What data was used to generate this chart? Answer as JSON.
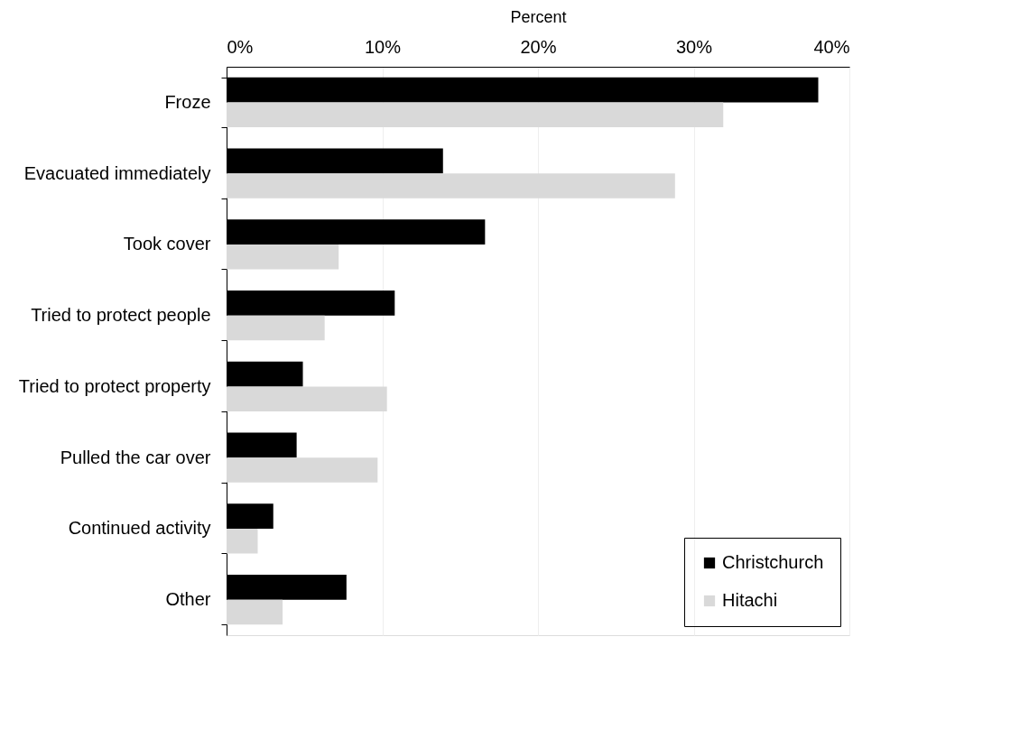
{
  "chart_data": {
    "type": "bar",
    "orientation": "horizontal",
    "xlabel": "Percent",
    "categories": [
      "Froze",
      "Evacuated immediately",
      "Took cover",
      "Tried to protect people",
      "Tried to protect property",
      "Pulled the car over",
      "Continued activity",
      "Other"
    ],
    "series": [
      {
        "name": "Christchurch",
        "color": "#000000",
        "values": [
          38.0,
          13.9,
          16.6,
          10.8,
          4.9,
          4.5,
          3.0,
          7.7
        ]
      },
      {
        "name": "Hitachi",
        "color": "#d9d9d9",
        "values": [
          31.9,
          28.8,
          7.2,
          6.3,
          10.3,
          9.7,
          2.0,
          3.6
        ]
      }
    ],
    "xlim": [
      0,
      40
    ],
    "xticks": [
      {
        "value": 0,
        "label": "0%"
      },
      {
        "value": 10,
        "label": "10%"
      },
      {
        "value": 20,
        "label": "20%"
      },
      {
        "value": 30,
        "label": "30%"
      },
      {
        "value": 40,
        "label": "40%"
      }
    ],
    "grid": "x",
    "legend": "bottom right"
  }
}
